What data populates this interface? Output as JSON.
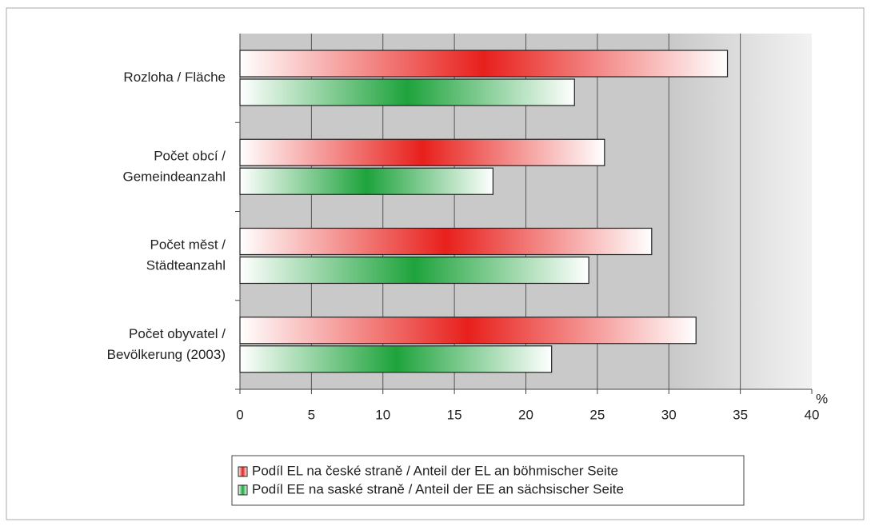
{
  "chart_data": {
    "type": "hbar",
    "categories": [
      [
        "Rozloha / Fläche"
      ],
      [
        "Počet obcí /",
        "Gemeindeanzahl"
      ],
      [
        "Počet měst /",
        "Städteanzahl"
      ],
      [
        "Počet obyvatel /",
        "Bevölkerung (2003)"
      ]
    ],
    "series": [
      {
        "name": "Podíl EL na české straně / Anteil der EL an böhmischer Seite",
        "color": "#e8201c",
        "values": [
          34.1,
          25.5,
          28.8,
          31.9
        ]
      },
      {
        "name": "Podíl EE na saské straně / Anteil der EE an sächsischer Seite",
        "color": "#1ea33c",
        "values": [
          23.4,
          17.7,
          24.4,
          21.8
        ]
      }
    ],
    "xlabel": "%",
    "xlim": [
      0,
      40
    ],
    "xticks": [
      0,
      5,
      10,
      15,
      20,
      25,
      30,
      35,
      40
    ],
    "grid": true,
    "legend": "bottom"
  }
}
